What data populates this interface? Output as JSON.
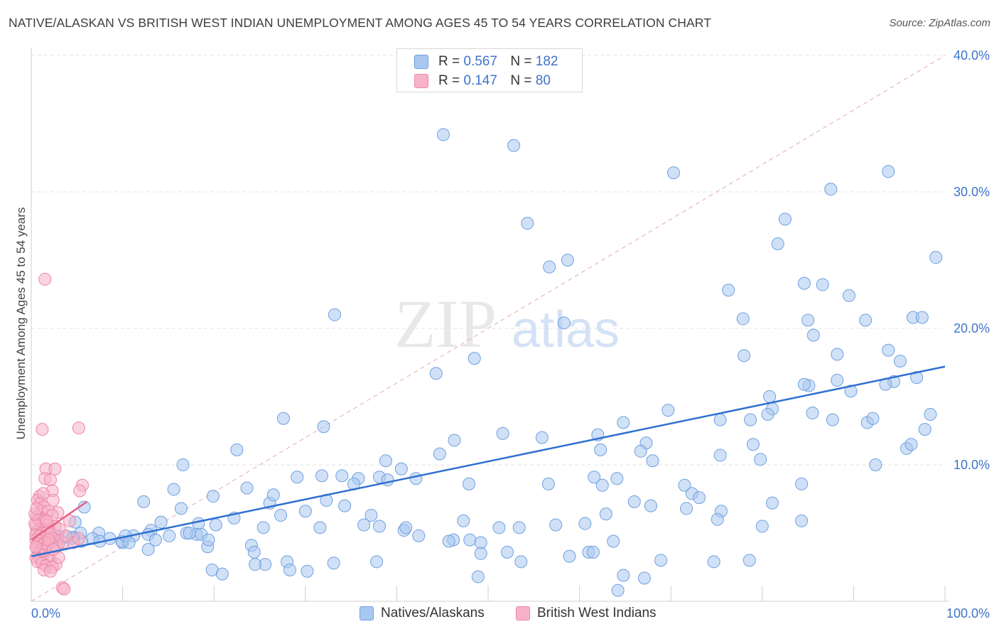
{
  "title": "NATIVE/ALASKAN VS BRITISH WEST INDIAN UNEMPLOYMENT AMONG AGES 45 TO 54 YEARS CORRELATION CHART",
  "source": "Source: ZipAtlas.com",
  "watermark": {
    "zip": "ZIP",
    "atlas": "atlas"
  },
  "legend": {
    "rows": [
      {
        "r_label": "R =",
        "r_value": "0.567",
        "n_label": "N =",
        "n_value": "182"
      },
      {
        "r_label": "R =",
        "r_value": "0.147",
        "n_label": "N =",
        "n_value": "80"
      }
    ]
  },
  "colors": {
    "blue_fill": "#a9c8f0",
    "blue_stroke": "#6fa0e0",
    "blue_line": "#2f6fd0",
    "pink_fill": "#f6b3c8",
    "pink_stroke": "#ee86a6",
    "pink_line": "#e8608a",
    "grid": "#e3e3e3",
    "tick_text": "#3d73c9",
    "diag": "#e7a6b8"
  },
  "chart_data": {
    "type": "scatter",
    "title": "NATIVE/ALASKAN VS BRITISH WEST INDIAN UNEMPLOYMENT AMONG AGES 45 TO 54 YEARS CORRELATION CHART",
    "xlabel": "",
    "ylabel": "Unemployment Among Ages 45 to 54 years",
    "xlim": [
      0,
      100
    ],
    "ylim": [
      0,
      40
    ],
    "x_tick_labels": [
      "0.0%",
      "100.0%"
    ],
    "y_ticks": [
      10,
      20,
      30,
      40
    ],
    "y_tick_labels": [
      "10.0%",
      "20.0%",
      "30.0%",
      "40.0%"
    ],
    "grid": true,
    "legend_position": "bottom",
    "reference_line": {
      "from": [
        0,
        0
      ],
      "to": [
        100,
        40
      ],
      "style": "dashed"
    },
    "series": [
      {
        "name": "Natives/Alaskans",
        "color": "#a9c8f0",
        "r": 0.567,
        "n": 182,
        "trend": {
          "x0": 0,
          "y0": 3.3,
          "x1": 100,
          "y1": 17.2
        },
        "points": [
          [
            45.1,
            34.2
          ],
          [
            52.8,
            33.4
          ],
          [
            54.3,
            27.7
          ],
          [
            56.7,
            24.5
          ],
          [
            58.7,
            25.0
          ],
          [
            58.3,
            20.4
          ],
          [
            33.2,
            21.0
          ],
          [
            48.5,
            17.8
          ],
          [
            44.3,
            16.7
          ],
          [
            70.3,
            31.4
          ],
          [
            76.3,
            22.8
          ],
          [
            77.9,
            20.7
          ],
          [
            78.0,
            18.0
          ],
          [
            81.7,
            26.2
          ],
          [
            82.5,
            28.0
          ],
          [
            84.6,
            23.3
          ],
          [
            85.0,
            20.6
          ],
          [
            85.6,
            19.5
          ],
          [
            86.6,
            23.2
          ],
          [
            87.5,
            30.2
          ],
          [
            89.5,
            22.4
          ],
          [
            88.2,
            18.1
          ],
          [
            91.3,
            20.6
          ],
          [
            93.8,
            31.5
          ],
          [
            93.8,
            18.4
          ],
          [
            95.1,
            17.6
          ],
          [
            96.5,
            20.8
          ],
          [
            97.5,
            20.8
          ],
          [
            99.0,
            25.2
          ],
          [
            96.9,
            16.4
          ],
          [
            94.4,
            16.1
          ],
          [
            93.5,
            15.9
          ],
          [
            88.2,
            16.2
          ],
          [
            89.7,
            15.4
          ],
          [
            85.1,
            15.8
          ],
          [
            84.6,
            15.9
          ],
          [
            80.8,
            15.0
          ],
          [
            81.1,
            14.1
          ],
          [
            80.6,
            13.7
          ],
          [
            78.7,
            13.3
          ],
          [
            75.4,
            13.3
          ],
          [
            69.7,
            14.0
          ],
          [
            64.8,
            13.1
          ],
          [
            62.0,
            12.2
          ],
          [
            67.3,
            11.6
          ],
          [
            66.7,
            11.0
          ],
          [
            62.3,
            11.1
          ],
          [
            55.9,
            12.0
          ],
          [
            51.6,
            12.3
          ],
          [
            46.3,
            11.8
          ],
          [
            44.7,
            10.8
          ],
          [
            38.8,
            10.3
          ],
          [
            40.5,
            9.7
          ],
          [
            42.1,
            9.0
          ],
          [
            35.8,
            9.0
          ],
          [
            32.0,
            12.8
          ],
          [
            27.6,
            13.4
          ],
          [
            22.5,
            11.1
          ],
          [
            16.6,
            10.0
          ],
          [
            15.6,
            8.2
          ],
          [
            12.3,
            7.3
          ],
          [
            19.9,
            7.7
          ],
          [
            23.6,
            8.3
          ],
          [
            26.1,
            7.2
          ],
          [
            26.5,
            7.8
          ],
          [
            29.1,
            9.1
          ],
          [
            31.8,
            9.2
          ],
          [
            34.0,
            9.2
          ],
          [
            35.3,
            8.6
          ],
          [
            38.1,
            9.1
          ],
          [
            39.0,
            8.9
          ],
          [
            47.9,
            8.6
          ],
          [
            56.6,
            8.6
          ],
          [
            61.6,
            9.1
          ],
          [
            62.5,
            8.5
          ],
          [
            64.1,
            9.0
          ],
          [
            68.0,
            10.3
          ],
          [
            71.5,
            8.5
          ],
          [
            72.3,
            7.9
          ],
          [
            75.4,
            10.7
          ],
          [
            79.0,
            11.5
          ],
          [
            79.8,
            10.4
          ],
          [
            85.5,
            13.8
          ],
          [
            87.7,
            13.3
          ],
          [
            91.5,
            13.1
          ],
          [
            92.4,
            10.0
          ],
          [
            95.8,
            11.2
          ],
          [
            96.3,
            11.5
          ],
          [
            97.8,
            12.6
          ],
          [
            98.4,
            13.7
          ],
          [
            92.1,
            13.4
          ],
          [
            84.3,
            8.6
          ],
          [
            81.1,
            7.2
          ],
          [
            73.1,
            7.6
          ],
          [
            75.5,
            6.6
          ],
          [
            75.1,
            6.0
          ],
          [
            71.7,
            6.8
          ],
          [
            66.0,
            7.3
          ],
          [
            67.8,
            7.0
          ],
          [
            62.9,
            6.4
          ],
          [
            60.6,
            5.7
          ],
          [
            57.4,
            5.6
          ],
          [
            53.4,
            5.4
          ],
          [
            51.2,
            5.4
          ],
          [
            47.3,
            5.9
          ],
          [
            48.0,
            4.5
          ],
          [
            49.2,
            4.3
          ],
          [
            46.2,
            4.5
          ],
          [
            40.8,
            5.2
          ],
          [
            41.0,
            5.4
          ],
          [
            38.1,
            5.5
          ],
          [
            37.2,
            6.3
          ],
          [
            36.4,
            5.6
          ],
          [
            34.3,
            7.0
          ],
          [
            32.3,
            7.4
          ],
          [
            31.6,
            5.4
          ],
          [
            30.0,
            6.6
          ],
          [
            27.3,
            6.3
          ],
          [
            25.4,
            5.4
          ],
          [
            22.2,
            6.1
          ],
          [
            20.2,
            5.6
          ],
          [
            18.3,
            5.7
          ],
          [
            18.1,
            4.9
          ],
          [
            16.4,
            6.8
          ],
          [
            14.2,
            5.8
          ],
          [
            13.1,
            5.2
          ],
          [
            12.8,
            4.9
          ],
          [
            11.2,
            4.8
          ],
          [
            10.0,
            4.3
          ],
          [
            8.6,
            4.6
          ],
          [
            7.4,
            5.0
          ],
          [
            6.7,
            4.6
          ],
          [
            5.5,
            4.4
          ],
          [
            5.4,
            5.0
          ],
          [
            4.8,
            5.8
          ],
          [
            4.6,
            4.7
          ],
          [
            3.8,
            4.7
          ],
          [
            3.0,
            4.2
          ],
          [
            2.8,
            4.7
          ],
          [
            2.0,
            5.0
          ],
          [
            2.9,
            4.8
          ],
          [
            4.5,
            4.6
          ],
          [
            5.8,
            6.9
          ],
          [
            7.5,
            4.4
          ],
          [
            9.9,
            4.4
          ],
          [
            10.3,
            4.8
          ],
          [
            10.7,
            4.3
          ],
          [
            12.8,
            3.8
          ],
          [
            13.6,
            4.5
          ],
          [
            15.1,
            4.8
          ],
          [
            17.0,
            5.0
          ],
          [
            18.6,
            4.9
          ],
          [
            19.3,
            4.0
          ],
          [
            19.4,
            4.5
          ],
          [
            17.3,
            5.0
          ],
          [
            24.1,
            4.1
          ],
          [
            24.4,
            3.6
          ],
          [
            25.6,
            2.7
          ],
          [
            24.5,
            2.7
          ],
          [
            28.0,
            2.9
          ],
          [
            28.3,
            2.3
          ],
          [
            30.2,
            2.2
          ],
          [
            33.1,
            2.8
          ],
          [
            37.8,
            2.9
          ],
          [
            42.4,
            4.8
          ],
          [
            45.7,
            4.4
          ],
          [
            49.2,
            3.5
          ],
          [
            52.1,
            3.6
          ],
          [
            53.6,
            2.9
          ],
          [
            58.9,
            3.3
          ],
          [
            61.0,
            3.6
          ],
          [
            61.5,
            3.6
          ],
          [
            63.7,
            4.4
          ],
          [
            64.8,
            1.9
          ],
          [
            67.1,
            1.7
          ],
          [
            74.7,
            2.9
          ],
          [
            78.6,
            3.0
          ],
          [
            80.0,
            5.5
          ],
          [
            84.3,
            5.9
          ],
          [
            48.9,
            1.8
          ],
          [
            68.9,
            3.0
          ],
          [
            19.8,
            2.3
          ],
          [
            20.9,
            2.0
          ],
          [
            64.2,
            0.8
          ]
        ]
      },
      {
        "name": "British West Indians",
        "color": "#f6b3c8",
        "r": 0.147,
        "n": 80,
        "trend": {
          "x0": 0,
          "y0": 4.5,
          "x1": 6.1,
          "y1": 7.3
        },
        "points": [
          [
            1.5,
            23.6
          ],
          [
            1.2,
            12.6
          ],
          [
            5.2,
            12.7
          ],
          [
            1.6,
            9.7
          ],
          [
            2.6,
            9.7
          ],
          [
            1.5,
            9.0
          ],
          [
            2.1,
            8.9
          ],
          [
            5.6,
            8.5
          ],
          [
            2.3,
            8.1
          ],
          [
            0.9,
            7.7
          ],
          [
            5.3,
            8.1
          ],
          [
            0.7,
            7.4
          ],
          [
            2.4,
            7.4
          ],
          [
            1.0,
            7.2
          ],
          [
            1.4,
            6.9
          ],
          [
            1.2,
            6.6
          ],
          [
            1.9,
            6.6
          ],
          [
            2.9,
            6.5
          ],
          [
            2.3,
            6.3
          ],
          [
            0.6,
            6.2
          ],
          [
            0.8,
            6.1
          ],
          [
            1.4,
            6.0
          ],
          [
            0.9,
            5.9
          ],
          [
            1.8,
            5.6
          ],
          [
            2.6,
            5.5
          ],
          [
            0.5,
            5.5
          ],
          [
            0.9,
            5.3
          ],
          [
            1.3,
            5.3
          ],
          [
            1.8,
            5.2
          ],
          [
            0.6,
            5.1
          ],
          [
            1.1,
            5.0
          ],
          [
            1.6,
            5.0
          ],
          [
            2.1,
            4.9
          ],
          [
            0.5,
            4.9
          ],
          [
            0.9,
            4.8
          ],
          [
            1.4,
            4.7
          ],
          [
            2.3,
            4.6
          ],
          [
            2.9,
            4.5
          ],
          [
            0.5,
            4.5
          ],
          [
            1.0,
            4.4
          ],
          [
            1.5,
            4.3
          ],
          [
            2.0,
            4.3
          ],
          [
            0.7,
            4.2
          ],
          [
            1.2,
            4.1
          ],
          [
            1.7,
            4.0
          ],
          [
            2.8,
            4.0
          ],
          [
            3.5,
            4.3
          ],
          [
            4.6,
            4.3
          ],
          [
            5.2,
            4.6
          ],
          [
            0.6,
            3.9
          ],
          [
            1.1,
            3.8
          ],
          [
            1.5,
            3.7
          ],
          [
            0.8,
            3.5
          ],
          [
            1.3,
            3.4
          ],
          [
            1.9,
            3.3
          ],
          [
            0.5,
            3.2
          ],
          [
            1.0,
            3.1
          ],
          [
            2.1,
            3.0
          ],
          [
            2.7,
            2.7
          ],
          [
            3.0,
            3.2
          ],
          [
            0.7,
            2.9
          ],
          [
            1.2,
            2.8
          ],
          [
            1.6,
            2.6
          ],
          [
            2.3,
            2.5
          ],
          [
            1.4,
            2.3
          ],
          [
            2.1,
            2.2
          ],
          [
            3.4,
            1.0
          ],
          [
            3.6,
            0.9
          ],
          [
            0.4,
            5.7
          ],
          [
            0.4,
            6.4
          ],
          [
            1.7,
            5.9
          ],
          [
            2.2,
            5.0
          ],
          [
            3.1,
            5.3
          ],
          [
            3.8,
            4.8
          ],
          [
            4.2,
            5.9
          ],
          [
            0.5,
            4.0
          ],
          [
            1.9,
            4.5
          ],
          [
            2.4,
            3.8
          ],
          [
            0.6,
            6.8
          ],
          [
            1.3,
            7.9
          ]
        ]
      }
    ]
  }
}
